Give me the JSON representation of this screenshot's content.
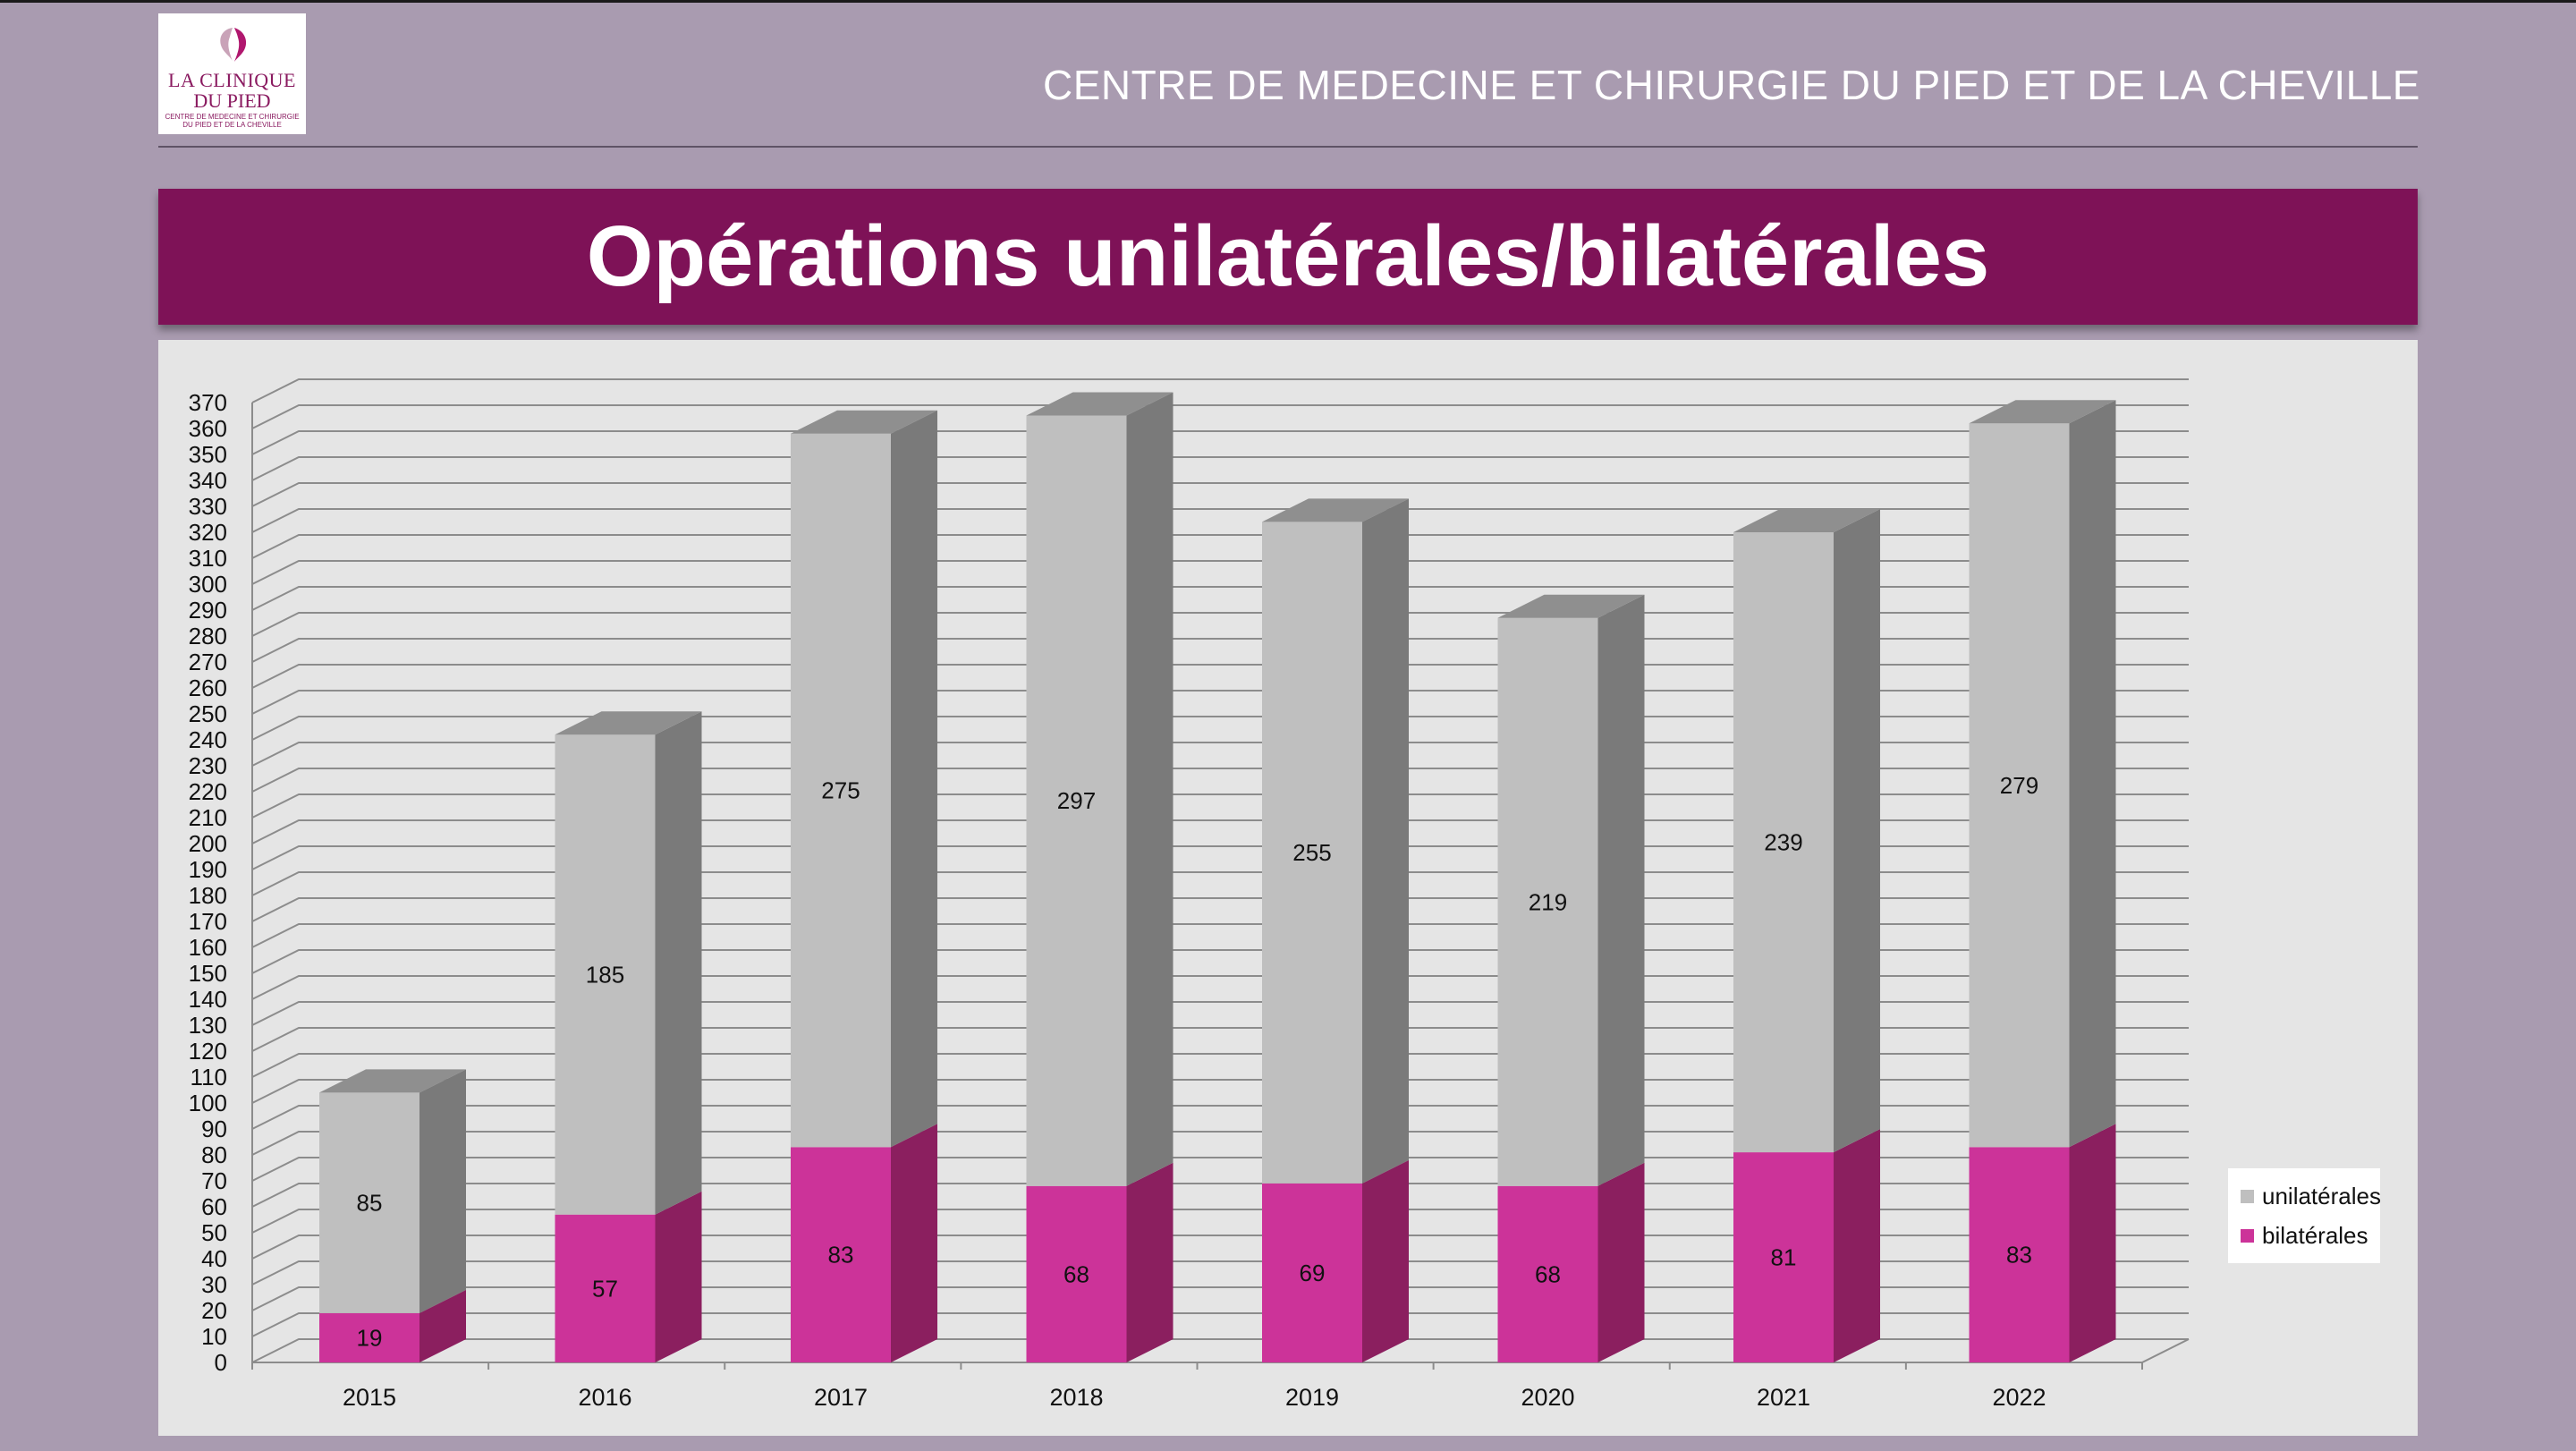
{
  "logo": {
    "line1": "LA CLINIQUE",
    "line2": "DU PIED",
    "line3": "CENTRE DE MEDECINE ET CHIRURGIE",
    "line4": "DU PIED ET DE LA CHEVILLE"
  },
  "header": {
    "title": "CENTRE DE MEDECINE ET CHIRURGIE DU PIED ET DE LA CHEVILLE"
  },
  "banner": {
    "title": "Opérations unilatérales/bilatérales"
  },
  "legend": {
    "unilateral": "unilatérales",
    "bilateral": "bilatérales"
  },
  "colors": {
    "bilateral_front": "#cc3399",
    "bilateral_side": "#8b1f5f",
    "unilateral_front": "#bfbfbf",
    "unilateral_side": "#7a7a7a",
    "unilateral_top": "#8f8f8f",
    "brand": "#7e1257"
  },
  "chart_data": {
    "type": "bar",
    "stacked": true,
    "three_d": true,
    "title": "Opérations unilatérales/bilatérales",
    "categories": [
      "2015",
      "2016",
      "2017",
      "2018",
      "2019",
      "2020",
      "2021",
      "2022"
    ],
    "series": [
      {
        "name": "bilatérales",
        "values": [
          19,
          57,
          83,
          68,
          69,
          68,
          81,
          83
        ]
      },
      {
        "name": "unilatérales",
        "values": [
          85,
          185,
          275,
          297,
          255,
          219,
          239,
          279
        ]
      }
    ],
    "ylim": [
      0,
      370
    ],
    "ytick_step": 10,
    "xlabel": "",
    "ylabel": "",
    "legend_position": "right",
    "grid": true
  }
}
